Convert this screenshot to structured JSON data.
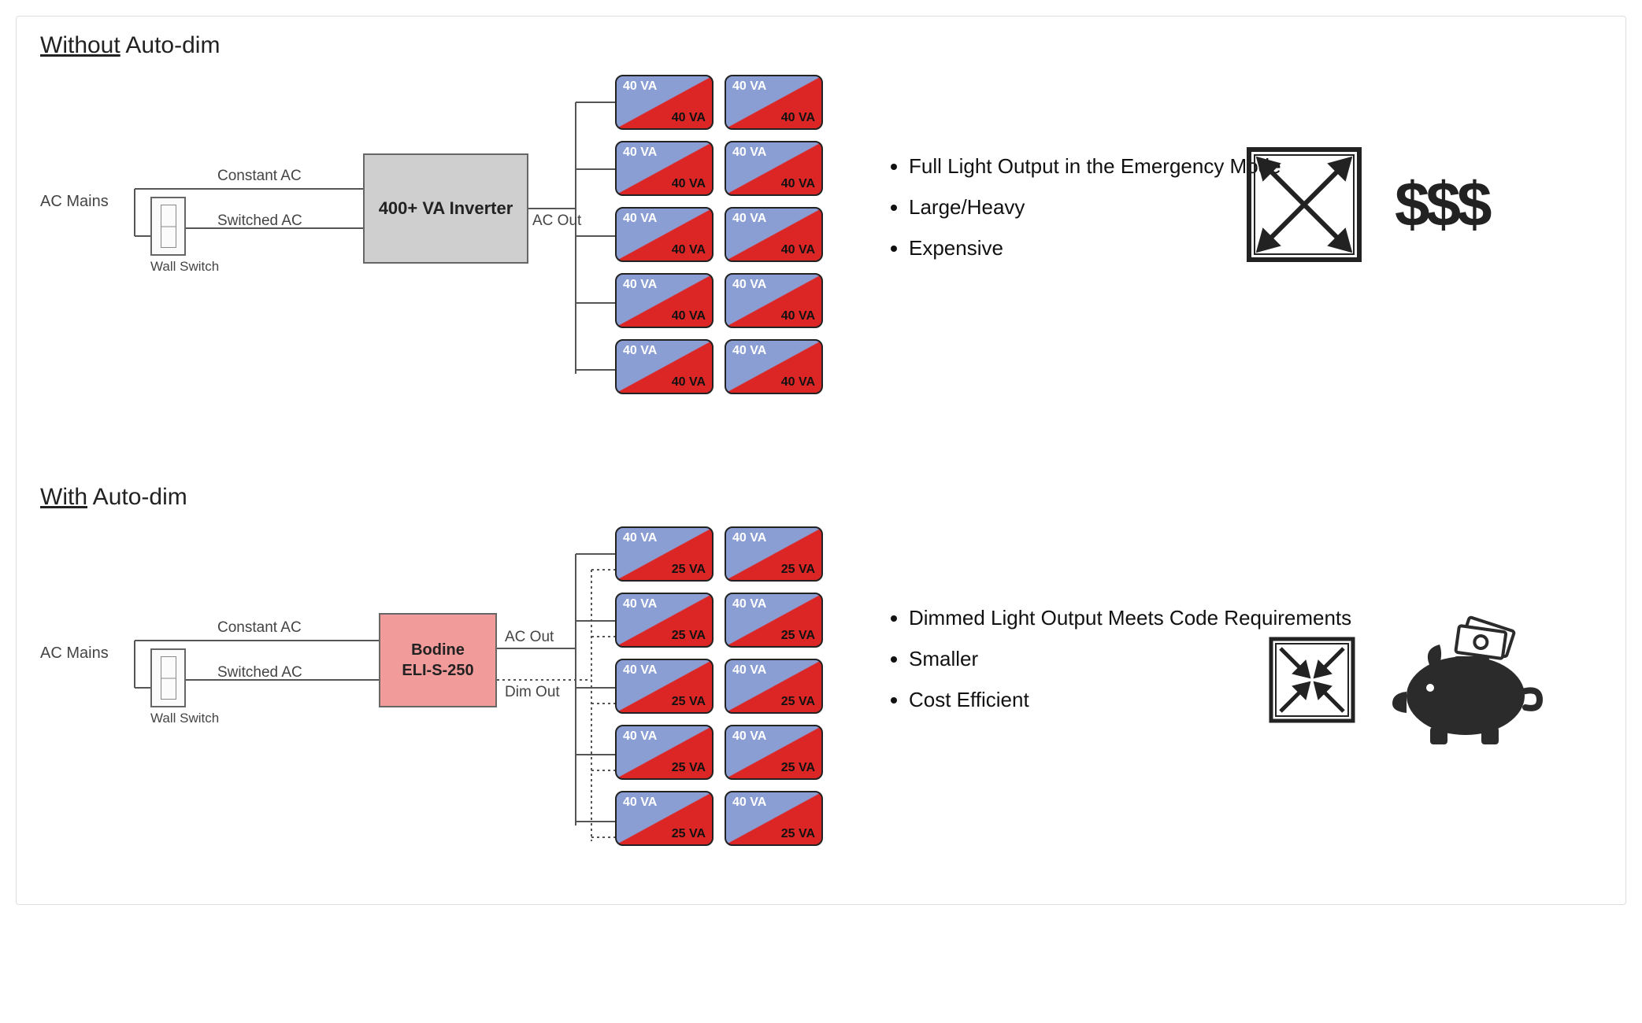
{
  "colors": {
    "load_blue": "#8a9ed4",
    "load_red": "#dc2626",
    "inverter_gray": "#cfcfcf",
    "inverter_red": "#f29b9b",
    "line": "#555",
    "text": "#222"
  },
  "common": {
    "ac_mains": "AC Mains",
    "constant_ac": "Constant AC",
    "switched_ac": "Switched AC",
    "ac_out": "AC Out",
    "dim_out": "Dim Out",
    "wall_switch": "Wall Switch"
  },
  "without": {
    "title_underline": "Without",
    "title_rest": " Auto-dim",
    "inverter_label": "400+ VA Inverter",
    "load_top": "40 VA",
    "load_bottom": "40 VA",
    "load_rows": 5,
    "load_cols": 2,
    "bullets": [
      "Full Light Output in the Emergency Mode",
      "Large/Heavy",
      "Expensive"
    ],
    "cost_symbol": "$$$",
    "arrow_icon": "expand"
  },
  "with": {
    "title_underline": "With",
    "title_rest": " Auto-dim",
    "inverter_label_line1": "Bodine",
    "inverter_label_line2": "ELI-S-250",
    "load_top": "40 VA",
    "load_bottom": "25 VA",
    "load_rows": 5,
    "load_cols": 2,
    "bullets": [
      "Dimmed Light Output Meets Code Requirements",
      "Smaller",
      "Cost Efficient"
    ],
    "arrow_icon": "contract",
    "savings_icon": "piggy-bank"
  }
}
